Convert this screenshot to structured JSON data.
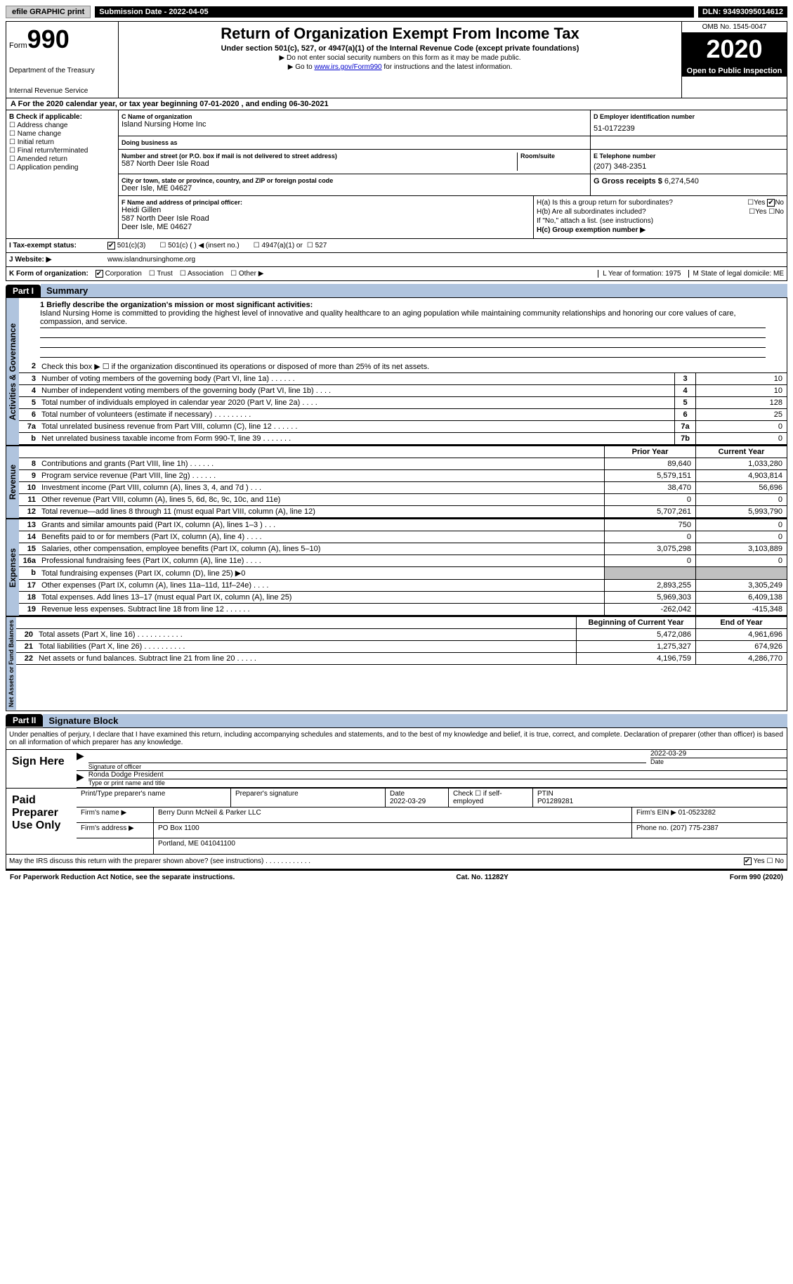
{
  "top": {
    "efile": "efile GRAPHIC print",
    "submission": "Submission Date - 2022-04-05",
    "dln": "DLN: 93493095014612"
  },
  "header": {
    "form_label": "Form",
    "form_num": "990",
    "dept1": "Department of the Treasury",
    "dept2": "Internal Revenue Service",
    "title": "Return of Organization Exempt From Income Tax",
    "subtitle": "Under section 501(c), 527, or 4947(a)(1) of the Internal Revenue Code (except private foundations)",
    "note1": "▶ Do not enter social security numbers on this form as it may be made public.",
    "note2": "▶ Go to www.irs.gov/Form990 for instructions and the latest information.",
    "link": "www.irs.gov/Form990",
    "omb": "OMB No. 1545-0047",
    "year": "2020",
    "open_pub": "Open to Public Inspection"
  },
  "period": "For the 2020 calendar year, or tax year beginning 07-01-2020    , and ending 06-30-2021",
  "B": {
    "label": "B Check if applicable:",
    "items": [
      "Address change",
      "Name change",
      "Initial return",
      "Final return/terminated",
      "Amended return",
      "Application pending"
    ]
  },
  "C": {
    "name_lbl": "C Name of organization",
    "name": "Island Nursing Home Inc",
    "dba_lbl": "Doing business as",
    "dba": "",
    "street_lbl": "Number and street (or P.O. box if mail is not delivered to street address)",
    "room_lbl": "Room/suite",
    "street": "587 North Deer Isle Road",
    "city_lbl": "City or town, state or province, country, and ZIP or foreign postal code",
    "city": "Deer Isle, ME  04627"
  },
  "D": {
    "lbl": "D Employer identification number",
    "val": "51-0172239"
  },
  "E": {
    "lbl": "E Telephone number",
    "val": "(207) 348-2351"
  },
  "G": {
    "lbl": "G Gross receipts $",
    "val": "6,274,540"
  },
  "F": {
    "lbl": "F Name and address of principal officer:",
    "name": "Heidi Gillen",
    "street": "587 North Deer Isle Road",
    "city": "Deer Isle, ME  04627"
  },
  "H": {
    "a_lbl": "H(a)  Is this a group return for subordinates?",
    "a_yes": "Yes",
    "a_no": "No",
    "b_lbl": "H(b)  Are all subordinates included?",
    "b_yes": "Yes",
    "b_no": "No",
    "b_note": "If \"No,\" attach a list. (see instructions)",
    "c_lbl": "H(c)  Group exemption number ▶"
  },
  "I": {
    "lbl": "I    Tax-exempt status:",
    "opt1": "501(c)(3)",
    "opt2": "501(c) (  ) ◀ (insert no.)",
    "opt3": "4947(a)(1) or",
    "opt4": "527"
  },
  "J": {
    "lbl": "J    Website: ▶",
    "val": "www.islandnursinghome.org"
  },
  "K": {
    "lbl": "K Form of organization:",
    "opts": [
      "Corporation",
      "Trust",
      "Association",
      "Other ▶"
    ]
  },
  "LM": {
    "L": "L Year of formation: 1975",
    "M": "M State of legal domicile: ME"
  },
  "part1": {
    "tab": "Part I",
    "title": "Summary",
    "q1_lbl": "1  Briefly describe the organization's mission or most significant activities:",
    "q1_val": "Island Nursing Home is committed to providing the highest level of innovative and quality healthcare to an aging population while maintaining community relationships and honoring our core values of care, compassion, and service.",
    "q2": "Check this box ▶ ☐  if the organization discontinued its operations or disposed of more than 25% of its net assets.",
    "governance_lbl": "Activities & Governance",
    "revenue_lbl": "Revenue",
    "expenses_lbl": "Expenses",
    "netassets_lbl": "Net Assets or Fund Balances",
    "prior_hdr": "Prior Year",
    "current_hdr": "Current Year",
    "begin_hdr": "Beginning of Current Year",
    "end_hdr": "End of Year",
    "lines_gov": [
      {
        "n": "3",
        "t": "Number of voting members of the governing body (Part VI, line 1a)   .    .    .    .    .    .",
        "b": "3",
        "v": "10"
      },
      {
        "n": "4",
        "t": "Number of independent voting members of the governing body (Part VI, line 1b)  .    .    .    .",
        "b": "4",
        "v": "10"
      },
      {
        "n": "5",
        "t": "Total number of individuals employed in calendar year 2020 (Part V, line 2a)   .    .    .    .",
        "b": "5",
        "v": "128"
      },
      {
        "n": "6",
        "t": "Total number of volunteers (estimate if necessary)    .    .    .    .    .    .    .    .    .",
        "b": "6",
        "v": "25"
      },
      {
        "n": "7a",
        "t": "Total unrelated business revenue from Part VIII, column (C), line 12   .    .    .    .    .    .",
        "b": "7a",
        "v": "0"
      },
      {
        "n": "b",
        "t": "Net unrelated business taxable income from Form 990-T, line 39  .    .    .    .    .    .    .",
        "b": "7b",
        "v": "0"
      }
    ],
    "lines_rev": [
      {
        "n": "8",
        "t": "Contributions and grants (Part VIII, line 1h)   .    .    .    .    .    .",
        "p": "89,640",
        "c": "1,033,280"
      },
      {
        "n": "9",
        "t": "Program service revenue (Part VIII, line 2g)   .    .    .    .    .    .",
        "p": "5,579,151",
        "c": "4,903,814"
      },
      {
        "n": "10",
        "t": "Investment income (Part VIII, column (A), lines 3, 4, and 7d )   .    .    .",
        "p": "38,470",
        "c": "56,696"
      },
      {
        "n": "11",
        "t": "Other revenue (Part VIII, column (A), lines 5, 6d, 8c, 9c, 10c, and 11e)",
        "p": "0",
        "c": "0"
      },
      {
        "n": "12",
        "t": "Total revenue—add lines 8 through 11 (must equal Part VIII, column (A), line 12)",
        "p": "5,707,261",
        "c": "5,993,790"
      }
    ],
    "lines_exp": [
      {
        "n": "13",
        "t": "Grants and similar amounts paid (Part IX, column (A), lines 1–3 )   .    .    .",
        "p": "750",
        "c": "0"
      },
      {
        "n": "14",
        "t": "Benefits paid to or for members (Part IX, column (A), line 4)   .    .    .    .",
        "p": "0",
        "c": "0"
      },
      {
        "n": "15",
        "t": "Salaries, other compensation, employee benefits (Part IX, column (A), lines 5–10)",
        "p": "3,075,298",
        "c": "3,103,889"
      },
      {
        "n": "16a",
        "t": "Professional fundraising fees (Part IX, column (A), line 11e)   .    .    .    .",
        "p": "0",
        "c": "0"
      },
      {
        "n": "b",
        "t": "Total fundraising expenses (Part IX, column (D), line 25) ▶0",
        "p": "",
        "c": "",
        "shaded": true
      },
      {
        "n": "17",
        "t": "Other expenses (Part IX, column (A), lines 11a–11d, 11f–24e)   .    .    .    .",
        "p": "2,893,255",
        "c": "3,305,249"
      },
      {
        "n": "18",
        "t": "Total expenses. Add lines 13–17 (must equal Part IX, column (A), line 25)",
        "p": "5,969,303",
        "c": "6,409,138"
      },
      {
        "n": "19",
        "t": "Revenue less expenses. Subtract line 18 from line 12   .    .    .    .    .    .",
        "p": "-262,042",
        "c": "-415,348"
      }
    ],
    "lines_net": [
      {
        "n": "20",
        "t": "Total assets (Part X, line 16)   .    .    .    .    .    .    .    .    .    .    .",
        "p": "5,472,086",
        "c": "4,961,696"
      },
      {
        "n": "21",
        "t": "Total liabilities (Part X, line 26)   .    .    .    .    .    .    .    .    .    .",
        "p": "1,275,327",
        "c": "674,926"
      },
      {
        "n": "22",
        "t": "Net assets or fund balances. Subtract line 21 from line 20   .    .    .    .    .",
        "p": "4,196,759",
        "c": "4,286,770"
      }
    ]
  },
  "part2": {
    "tab": "Part II",
    "title": "Signature Block",
    "intro": "Under penalties of perjury, I declare that I have examined this return, including accompanying schedules and statements, and to the best of my knowledge and belief, it is true, correct, and complete. Declaration of preparer (other than officer) is based on all information of which preparer has any knowledge.",
    "sign_here": "Sign Here",
    "sig_officer_lbl": "Signature of officer",
    "sig_date": "2022-03-29",
    "date_lbl": "Date",
    "officer_name": "Ronda Dodge  President",
    "type_name_lbl": "Type or print name and title",
    "paid_lbl": "Paid Preparer Use Only",
    "prep_name_lbl": "Print/Type preparer's name",
    "prep_sig_lbl": "Preparer's signature",
    "prep_date_lbl": "Date",
    "prep_date": "2022-03-29",
    "check_if_lbl": "Check ☐ if self-employed",
    "ptin_lbl": "PTIN",
    "ptin": "P01289281",
    "firm_name_lbl": "Firm's name    ▶",
    "firm_name": "Berry Dunn McNeil & Parker LLC",
    "firm_ein_lbl": "Firm's EIN ▶",
    "firm_ein": "01-0523282",
    "firm_addr_lbl": "Firm's address ▶",
    "firm_addr1": "PO Box 1100",
    "firm_addr2": "Portland, ME  041041100",
    "phone_lbl": "Phone no.",
    "phone": "(207) 775-2387",
    "may_irs": "May the IRS discuss this return with the preparer shown above? (see instructions)    .    .    .    .    .    .    .    .    .    .    .    .",
    "yes": "Yes",
    "no": "No"
  },
  "footer": {
    "pra": "For Paperwork Reduction Act Notice, see the separate instructions.",
    "cat": "Cat. No. 11282Y",
    "form": "Form 990 (2020)"
  }
}
